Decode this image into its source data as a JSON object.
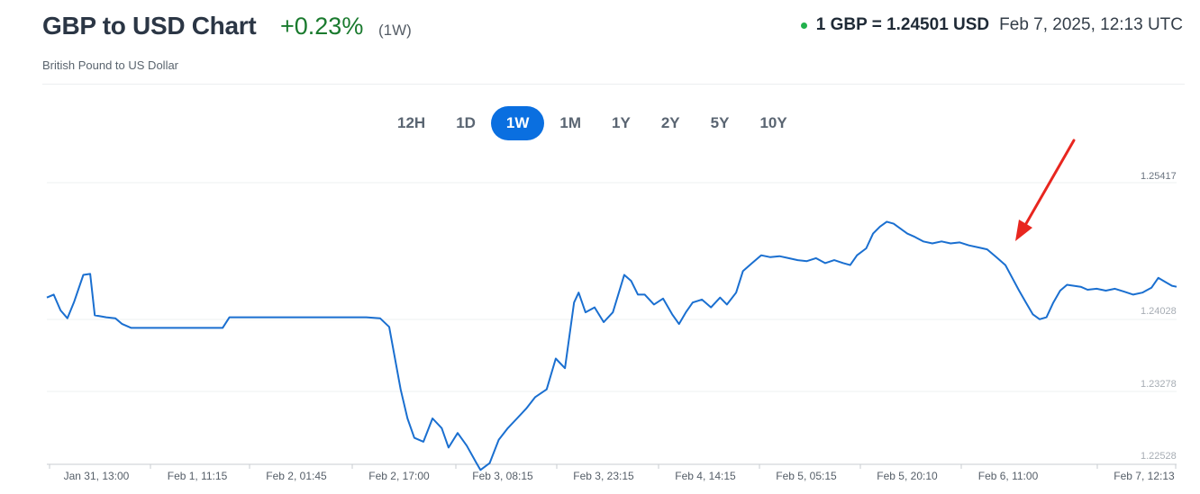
{
  "header": {
    "title": "GBP to USD Chart",
    "change": "+0.23%",
    "period": "(1W)",
    "subtitle": "British Pound to US Dollar",
    "rate": "1 GBP = 1.24501 USD",
    "timestamp": "Feb 7, 2025, 12:13 UTC"
  },
  "colors": {
    "line": "#1a6fd0",
    "positive": "#1a7a2e",
    "active_tab": "#0a6fe0",
    "live_dot": "#22b14c",
    "arrow": "#e8261f"
  },
  "tabs": [
    {
      "label": "12H",
      "active": false
    },
    {
      "label": "1D",
      "active": false
    },
    {
      "label": "1W",
      "active": true
    },
    {
      "label": "1M",
      "active": false
    },
    {
      "label": "1Y",
      "active": false
    },
    {
      "label": "2Y",
      "active": false
    },
    {
      "label": "5Y",
      "active": false
    },
    {
      "label": "10Y",
      "active": false
    }
  ],
  "chart_data": {
    "type": "line",
    "title": "GBP to USD Chart",
    "ylim": [
      1.22528,
      1.25417
    ],
    "y_ticks": [
      "1.25417",
      "1.24028",
      "1.23278",
      "1.22528"
    ],
    "x_ticks": [
      "Jan 31, 13:00",
      "Feb 1, 11:15",
      "Feb 2, 01:45",
      "Feb 2, 17:00",
      "Feb 3, 08:15",
      "Feb 3, 23:15",
      "Feb 4, 14:15",
      "Feb 5, 05:15",
      "Feb 5, 20:10",
      "Feb 6, 11:00",
      "Feb 7, 12:13"
    ],
    "grid": true,
    "annotation": "red arrow pointing at the drop on Feb 6",
    "series": [
      {
        "points": [
          [
            0,
            1.2425
          ],
          [
            0.3,
            1.2428
          ],
          [
            0.6,
            1.2412
          ],
          [
            0.9,
            1.2404
          ],
          [
            1.2,
            1.2421
          ],
          [
            1.6,
            1.2448
          ],
          [
            1.9,
            1.2449
          ],
          [
            2.1,
            1.2407
          ],
          [
            2.6,
            1.2405
          ],
          [
            3.0,
            1.2404
          ],
          [
            3.3,
            1.2398
          ],
          [
            3.7,
            1.2394
          ],
          [
            4.2,
            1.2394
          ],
          [
            5.0,
            1.2394
          ],
          [
            6.0,
            1.2394
          ],
          [
            7.0,
            1.2394
          ],
          [
            7.7,
            1.2394
          ],
          [
            8.0,
            1.2405
          ],
          [
            9.0,
            1.2405
          ],
          [
            10.0,
            1.2405
          ],
          [
            11.0,
            1.2405
          ],
          [
            12.0,
            1.2405
          ],
          [
            13.0,
            1.2405
          ],
          [
            14.0,
            1.2405
          ],
          [
            14.6,
            1.2404
          ],
          [
            15.0,
            1.2395
          ],
          [
            15.5,
            1.233
          ],
          [
            15.8,
            1.23
          ],
          [
            16.1,
            1.228
          ],
          [
            16.5,
            1.2276
          ],
          [
            16.9,
            1.23
          ],
          [
            17.3,
            1.229
          ],
          [
            17.6,
            1.227
          ],
          [
            18.0,
            1.2285
          ],
          [
            18.4,
            1.2272
          ],
          [
            18.8,
            1.2255
          ],
          [
            19.0,
            1.2247
          ],
          [
            19.4,
            1.2254
          ],
          [
            19.8,
            1.2278
          ],
          [
            20.2,
            1.229
          ],
          [
            20.6,
            1.23
          ],
          [
            21.0,
            1.231
          ],
          [
            21.4,
            1.2322
          ],
          [
            21.9,
            1.233
          ],
          [
            22.3,
            1.2362
          ],
          [
            22.7,
            1.2352
          ],
          [
            23.1,
            1.242
          ],
          [
            23.3,
            1.243
          ],
          [
            23.6,
            1.241
          ],
          [
            24.0,
            1.2415
          ],
          [
            24.4,
            1.24
          ],
          [
            24.8,
            1.241
          ],
          [
            25.3,
            1.2448
          ],
          [
            25.6,
            1.2442
          ],
          [
            25.9,
            1.2428
          ],
          [
            26.2,
            1.2428
          ],
          [
            26.6,
            1.2418
          ],
          [
            27.0,
            1.2424
          ],
          [
            27.4,
            1.2408
          ],
          [
            27.7,
            1.2398
          ],
          [
            28.0,
            1.241
          ],
          [
            28.3,
            1.242
          ],
          [
            28.7,
            1.2423
          ],
          [
            29.1,
            1.2415
          ],
          [
            29.5,
            1.2425
          ],
          [
            29.8,
            1.2418
          ],
          [
            30.2,
            1.243
          ],
          [
            30.5,
            1.2452
          ],
          [
            30.9,
            1.246
          ],
          [
            31.3,
            1.2468
          ],
          [
            31.7,
            1.2466
          ],
          [
            32.1,
            1.2467
          ],
          [
            32.5,
            1.2465
          ],
          [
            32.9,
            1.2463
          ],
          [
            33.3,
            1.2462
          ],
          [
            33.7,
            1.2465
          ],
          [
            34.1,
            1.246
          ],
          [
            34.5,
            1.2463
          ],
          [
            34.9,
            1.246
          ],
          [
            35.2,
            1.2458
          ],
          [
            35.5,
            1.2468
          ],
          [
            35.9,
            1.2475
          ],
          [
            36.2,
            1.249
          ],
          [
            36.5,
            1.2497
          ],
          [
            36.8,
            1.2502
          ],
          [
            37.1,
            1.25
          ],
          [
            37.4,
            1.2495
          ],
          [
            37.7,
            1.249
          ],
          [
            38.0,
            1.2487
          ],
          [
            38.4,
            1.2482
          ],
          [
            38.8,
            1.248
          ],
          [
            39.2,
            1.2482
          ],
          [
            39.6,
            1.248
          ],
          [
            40.0,
            1.2481
          ],
          [
            40.4,
            1.2478
          ],
          [
            40.8,
            1.2476
          ],
          [
            41.2,
            1.2474
          ],
          [
            41.6,
            1.2466
          ],
          [
            42.0,
            1.2458
          ],
          [
            42.3,
            1.2445
          ],
          [
            42.6,
            1.2432
          ],
          [
            42.9,
            1.242
          ],
          [
            43.2,
            1.2408
          ],
          [
            43.5,
            1.2403
          ],
          [
            43.8,
            1.2405
          ],
          [
            44.1,
            1.242
          ],
          [
            44.4,
            1.2432
          ],
          [
            44.7,
            1.2438
          ],
          [
            45.0,
            1.2437
          ],
          [
            45.3,
            1.2436
          ],
          [
            45.6,
            1.2433
          ],
          [
            46.0,
            1.2434
          ],
          [
            46.4,
            1.2432
          ],
          [
            46.8,
            1.2434
          ],
          [
            47.2,
            1.2431
          ],
          [
            47.6,
            1.2428
          ],
          [
            48.0,
            1.243
          ],
          [
            48.4,
            1.2435
          ],
          [
            48.7,
            1.2445
          ],
          [
            49.0,
            1.2441
          ],
          [
            49.3,
            1.2437
          ],
          [
            49.5,
            1.2436
          ]
        ]
      }
    ]
  }
}
